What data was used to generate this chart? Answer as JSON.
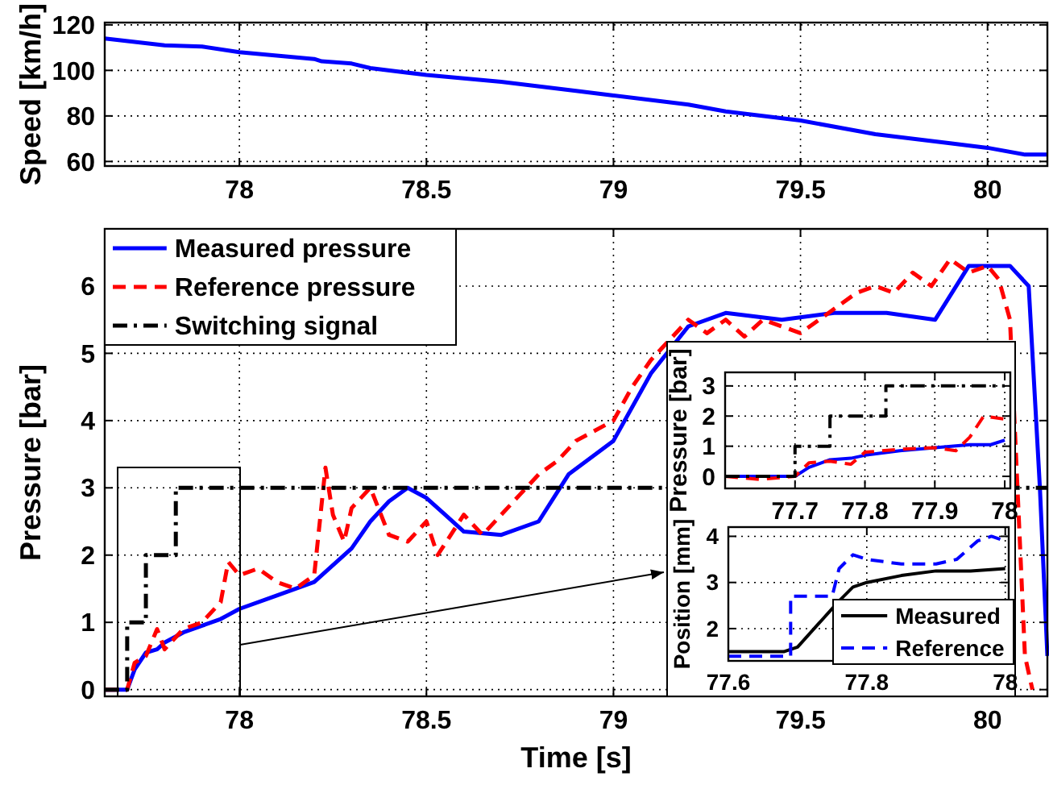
{
  "chart_data": [
    {
      "type": "line",
      "ylabel": "Speed [km/h]",
      "xlim": [
        77.64,
        80.16
      ],
      "xticks": [
        78,
        78.5,
        79,
        79.5,
        80
      ],
      "ylim": [
        58,
        121
      ],
      "yticks": [
        60,
        80,
        100,
        120
      ],
      "grid": true,
      "legend": false,
      "line_style": "solid",
      "series": [
        {
          "color": "#0000ff",
          "x": [
            77.64,
            77.8,
            77.9,
            78,
            78.2,
            78.22,
            78.3,
            78.35,
            78.45,
            78.5,
            78.7,
            78.9,
            79,
            79.2,
            79.3,
            79.5,
            79.7,
            79.9,
            80,
            80.1,
            80.16
          ],
          "values": [
            114,
            111,
            110.5,
            108,
            105,
            104,
            103,
            101,
            99,
            98,
            95,
            91,
            89,
            85,
            82,
            78,
            72,
            68,
            66,
            63,
            63
          ]
        }
      ]
    },
    {
      "type": "line",
      "xlabel": "Time [s]",
      "ylabel": "Pressure [bar]",
      "xlim": [
        77.64,
        80.16
      ],
      "xticks": [
        78,
        78.5,
        79,
        79.5,
        80
      ],
      "ylim": [
        -0.1,
        6.85
      ],
      "yticks": [
        0,
        1,
        2,
        3,
        4,
        5,
        6
      ],
      "grid": true,
      "legend": "top left",
      "series": [
        {
          "name": "Measured pressure",
          "color": "#0000ff",
          "line_style": "solid",
          "x": [
            77.64,
            77.7,
            77.72,
            77.75,
            77.78,
            77.8,
            77.85,
            77.9,
            77.95,
            78,
            78.1,
            78.2,
            78.3,
            78.35,
            78.4,
            78.45,
            78.5,
            78.55,
            78.6,
            78.7,
            78.8,
            78.88,
            79,
            79.1,
            79.2,
            79.3,
            79.45,
            79.59,
            79.73,
            79.86,
            79.95,
            80.06,
            80.11,
            80.14,
            80.16
          ],
          "values": [
            0,
            0,
            0.3,
            0.55,
            0.6,
            0.7,
            0.85,
            0.95,
            1.05,
            1.2,
            1.4,
            1.6,
            2.1,
            2.5,
            2.8,
            3,
            2.85,
            2.6,
            2.35,
            2.3,
            2.5,
            3.2,
            3.7,
            4.7,
            5.4,
            5.6,
            5.5,
            5.6,
            5.6,
            5.5,
            6.3,
            6.3,
            6,
            3,
            0.5
          ]
        },
        {
          "name": "Reference pressure",
          "color": "#ff0000",
          "line_style": "dashed",
          "x": [
            77.64,
            77.7,
            77.72,
            77.75,
            77.78,
            77.8,
            77.85,
            77.9,
            77.95,
            77.97,
            78,
            78.05,
            78.1,
            78.15,
            78.2,
            78.23,
            78.25,
            78.28,
            78.3,
            78.35,
            78.4,
            78.45,
            78.5,
            78.53,
            78.6,
            78.65,
            78.7,
            78.75,
            78.8,
            78.85,
            78.9,
            79,
            79.05,
            79.1,
            79.2,
            79.25,
            79.3,
            79.35,
            79.4,
            79.5,
            79.55,
            79.6,
            79.65,
            79.7,
            79.75,
            79.8,
            79.85,
            79.9,
            79.95,
            80,
            80.03,
            80.06,
            80.08,
            80.1,
            80.12
          ],
          "values": [
            0,
            0,
            0.4,
            0.5,
            0.9,
            0.6,
            0.9,
            1,
            1.3,
            1.9,
            1.7,
            1.8,
            1.6,
            1.5,
            1.7,
            3.3,
            2.6,
            2.2,
            2.7,
            3,
            2.3,
            2.2,
            2.5,
            2,
            2.6,
            2.3,
            2.6,
            2.9,
            3.2,
            3.4,
            3.7,
            4,
            4.5,
            4.9,
            5.5,
            5.3,
            5.5,
            5.25,
            5.5,
            5.3,
            5.5,
            5.7,
            5.9,
            6,
            5.9,
            6.2,
            6,
            6.4,
            6.2,
            6.3,
            6.1,
            5.5,
            3,
            0.5,
            0
          ]
        },
        {
          "name": "Switching signal",
          "color": "#000000",
          "line_style": "dashdot",
          "x": [
            77.64,
            77.7,
            77.7,
            77.75,
            77.75,
            77.83,
            77.83,
            80.16
          ],
          "values": [
            0,
            0,
            1,
            1,
            2,
            2,
            3,
            3
          ]
        }
      ]
    },
    {
      "type": "line",
      "ylabel": "Pressure [bar]",
      "xlim": [
        77.6,
        78.008
      ],
      "xticks": [
        77.7,
        77.8,
        77.9,
        78
      ],
      "ylim": [
        -0.4,
        3.45
      ],
      "yticks": [
        0,
        1,
        2,
        3
      ],
      "grid": true,
      "legend": false,
      "series": [
        {
          "color": "#0000ff",
          "line_style": "solid",
          "x": [
            77.6,
            77.7,
            77.72,
            77.75,
            77.78,
            77.8,
            77.85,
            77.9,
            77.95,
            77.98,
            78
          ],
          "values": [
            0,
            0,
            0.3,
            0.55,
            0.6,
            0.7,
            0.85,
            0.95,
            1.05,
            1.05,
            1.2
          ]
        },
        {
          "color": "#ff0000",
          "line_style": "dashed",
          "x": [
            77.6,
            77.65,
            77.7,
            77.72,
            77.75,
            77.78,
            77.8,
            77.85,
            77.9,
            77.93,
            77.95,
            77.97,
            78
          ],
          "values": [
            0,
            -0.1,
            0,
            0.45,
            0.5,
            0.4,
            0.8,
            0.9,
            0.95,
            0.85,
            1.3,
            2,
            1.9
          ]
        },
        {
          "color": "#000000",
          "line_style": "dashdot",
          "x": [
            77.6,
            77.7,
            77.7,
            77.75,
            77.75,
            77.83,
            77.83,
            78
          ],
          "values": [
            0,
            0,
            1,
            1,
            2,
            2,
            3,
            3
          ]
        }
      ]
    },
    {
      "type": "line",
      "ylabel": "Position [mm]",
      "xlim": [
        77.6,
        78.005
      ],
      "xticks": [
        77.6,
        77.8,
        78
      ],
      "ylim": [
        1.3,
        4.2
      ],
      "yticks": [
        2,
        3,
        4
      ],
      "grid": true,
      "legend": "bottom right",
      "series": [
        {
          "name": "Measured",
          "color": "#000000",
          "line_style": "solid",
          "x": [
            77.6,
            77.68,
            77.7,
            77.73,
            77.76,
            77.78,
            77.8,
            77.85,
            77.9,
            77.95,
            78
          ],
          "values": [
            1.5,
            1.5,
            1.6,
            2.1,
            2.6,
            2.9,
            3,
            3.15,
            3.25,
            3.25,
            3.3
          ]
        },
        {
          "name": "Reference",
          "color": "#0000ff",
          "line_style": "dashed",
          "x": [
            77.6,
            77.69,
            77.69,
            77.75,
            77.76,
            77.78,
            77.8,
            77.85,
            77.9,
            77.93,
            77.96,
            77.98,
            78
          ],
          "values": [
            1.4,
            1.4,
            2.7,
            2.7,
            3.3,
            3.6,
            3.5,
            3.4,
            3.4,
            3.5,
            3.9,
            4,
            3.9
          ]
        }
      ]
    }
  ]
}
